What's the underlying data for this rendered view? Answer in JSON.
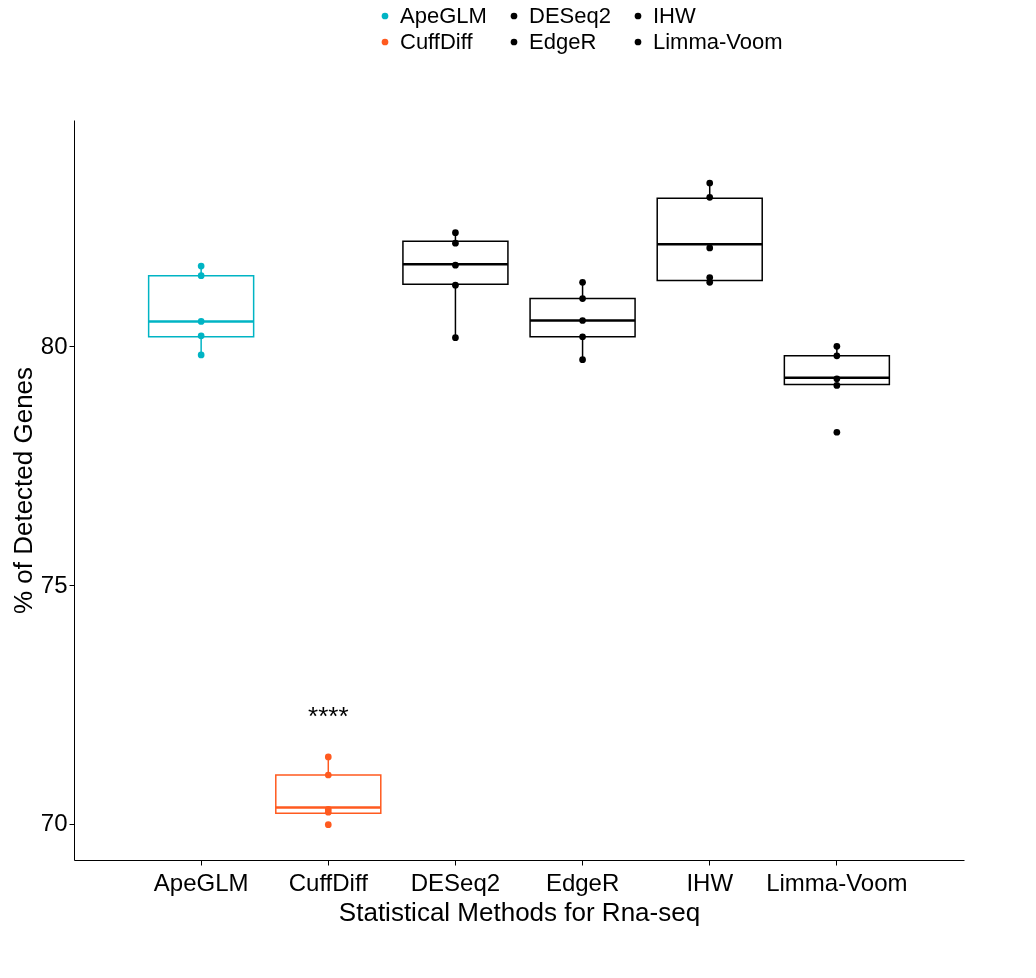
{
  "chart_data": {
    "type": "box",
    "xlabel": "Statistical Methods for Rna-seq",
    "ylabel": "% of Detected Genes",
    "categories": [
      "ApeGLM",
      "CuffDiff",
      "DESeq2",
      "EdgeR",
      "IHW",
      "Limma-Voom"
    ],
    "colors": [
      "#00b4c4",
      "#ff5a1f",
      "#000000",
      "#000000",
      "#000000",
      "#000000"
    ],
    "boxes": [
      {
        "low": 79.82,
        "q1": 80.2,
        "median": 80.52,
        "q3": 81.48,
        "high": 81.7
      },
      {
        "low": 70.22,
        "q1": 70.22,
        "median": 70.34,
        "q3": 71.02,
        "high": 71.4
      },
      {
        "low": 80.2,
        "q1": 81.3,
        "median": 81.72,
        "q3": 82.2,
        "high": 82.4
      },
      {
        "low": 79.72,
        "q1": 80.2,
        "median": 80.54,
        "q3": 81.0,
        "high": 81.34
      },
      {
        "low": 81.34,
        "q1": 81.38,
        "median": 82.14,
        "q3": 83.1,
        "high": 83.42
      },
      {
        "low": 79.18,
        "q1": 79.2,
        "median": 79.34,
        "q3": 79.8,
        "high": 80.0
      }
    ],
    "series": [
      {
        "type": "scatter",
        "name": "ApeGLM",
        "color": "#00b4c4",
        "x": [
          "ApeGLM",
          "ApeGLM",
          "ApeGLM",
          "ApeGLM",
          "ApeGLM"
        ],
        "values": [
          79.82,
          80.22,
          80.52,
          81.48,
          81.68
        ]
      },
      {
        "type": "scatter",
        "name": "CuffDiff",
        "color": "#ff5a1f",
        "x": [
          "CuffDiff",
          "CuffDiff",
          "CuffDiff",
          "CuffDiff",
          "CuffDiff"
        ],
        "values": [
          69.98,
          70.24,
          70.3,
          71.02,
          71.4
        ]
      },
      {
        "type": "scatter",
        "name": "DESeq2",
        "color": "#000000",
        "x": [
          "DESeq2",
          "DESeq2",
          "DESeq2",
          "DESeq2",
          "DESeq2"
        ],
        "values": [
          80.18,
          81.28,
          81.7,
          82.16,
          82.38
        ]
      },
      {
        "type": "scatter",
        "name": "EdgeR",
        "color": "#000000",
        "x": [
          "EdgeR",
          "EdgeR",
          "EdgeR",
          "EdgeR",
          "EdgeR"
        ],
        "values": [
          79.72,
          80.2,
          80.54,
          81.0,
          81.34
        ]
      },
      {
        "type": "scatter",
        "name": "IHW",
        "color": "#000000",
        "x": [
          "IHW",
          "IHW",
          "IHW",
          "IHW",
          "IHW"
        ],
        "values": [
          81.34,
          81.44,
          82.06,
          83.12,
          83.42
        ]
      },
      {
        "type": "scatter",
        "name": "Limma-Voom",
        "color": "#000000",
        "x": [
          "Limma-Voom",
          "Limma-Voom",
          "Limma-Voom",
          "Limma-Voom",
          "Limma-Voom"
        ],
        "values": [
          78.2,
          79.18,
          79.32,
          79.8,
          80.0
        ]
      }
    ],
    "annotations": [
      "****"
    ],
    "ylim": [
      69.24,
      84.74
    ],
    "yticks": [
      70,
      75,
      80
    ],
    "grid": false,
    "legend": "top",
    "marker": "circle"
  }
}
